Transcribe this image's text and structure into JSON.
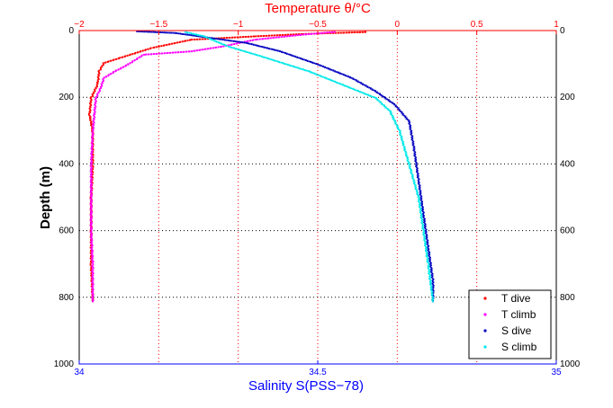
{
  "chart_data": {
    "type": "scatter",
    "title": "Temperature θ/°C",
    "xlabel": "Salinity S(PSS−78)",
    "ylabel": "Depth (m)",
    "x_bottom": {
      "label": "Salinity S(PSS−78)",
      "range": [
        34,
        35
      ],
      "ticks": [
        "34",
        "34.5",
        "35"
      ],
      "color": "#0000ff"
    },
    "x_top": {
      "label": "Temperature θ/°C",
      "range": [
        -2,
        1
      ],
      "ticks": [
        "−2",
        "−1.5",
        "−1",
        "−0.5",
        "0",
        "0.5",
        "1"
      ],
      "color": "#ff0000"
    },
    "y": {
      "label": "Depth (m)",
      "range": [
        0,
        1000
      ],
      "reversed": true,
      "ticks": [
        "0",
        "200",
        "400",
        "600",
        "800",
        "1000"
      ]
    },
    "grid": true,
    "legend_position": "bottom-right",
    "series": [
      {
        "name": "T dive",
        "axis": "top",
        "color": "#ff0000",
        "points": [
          [
            -0.2,
            2
          ],
          [
            -0.6,
            8
          ],
          [
            -0.9,
            15
          ],
          [
            -1.3,
            25
          ],
          [
            -1.55,
            50
          ],
          [
            -1.75,
            80
          ],
          [
            -1.85,
            95
          ],
          [
            -1.88,
            120
          ],
          [
            -1.89,
            160
          ],
          [
            -1.93,
            200
          ],
          [
            -1.94,
            250
          ],
          [
            -1.92,
            300
          ],
          [
            -1.92,
            400
          ],
          [
            -1.93,
            500
          ],
          [
            -1.93,
            600
          ],
          [
            -1.93,
            700
          ],
          [
            -1.92,
            810
          ]
        ]
      },
      {
        "name": "T climb",
        "axis": "top",
        "color": "#ff00ff",
        "points": [
          [
            -0.4,
            2
          ],
          [
            -0.6,
            10
          ],
          [
            -0.9,
            25
          ],
          [
            -1.1,
            45
          ],
          [
            -1.3,
            60
          ],
          [
            -1.6,
            70
          ],
          [
            -1.7,
            100
          ],
          [
            -1.78,
            120
          ],
          [
            -1.85,
            140
          ],
          [
            -1.87,
            170
          ],
          [
            -1.9,
            200
          ],
          [
            -1.92,
            300
          ],
          [
            -1.93,
            400
          ],
          [
            -1.93,
            500
          ],
          [
            -1.93,
            600
          ],
          [
            -1.92,
            700
          ],
          [
            -1.92,
            810
          ]
        ]
      },
      {
        "name": "S dive",
        "axis": "bottom",
        "color": "#0000c0",
        "points": [
          [
            34.12,
            0
          ],
          [
            34.2,
            5
          ],
          [
            34.35,
            35
          ],
          [
            34.42,
            60
          ],
          [
            34.5,
            100
          ],
          [
            34.57,
            140
          ],
          [
            34.62,
            180
          ],
          [
            34.66,
            220
          ],
          [
            34.69,
            270
          ],
          [
            34.7,
            350
          ],
          [
            34.71,
            450
          ],
          [
            34.72,
            550
          ],
          [
            34.73,
            650
          ],
          [
            34.74,
            750
          ],
          [
            34.74,
            810
          ]
        ]
      },
      {
        "name": "S climb",
        "axis": "bottom",
        "color": "#00e8e8",
        "points": [
          [
            34.22,
            2
          ],
          [
            34.26,
            15
          ],
          [
            34.31,
            45
          ],
          [
            34.38,
            75
          ],
          [
            34.48,
            120
          ],
          [
            34.55,
            160
          ],
          [
            34.62,
            200
          ],
          [
            34.65,
            240
          ],
          [
            34.67,
            300
          ],
          [
            34.69,
            400
          ],
          [
            34.71,
            500
          ],
          [
            34.72,
            600
          ],
          [
            34.73,
            700
          ],
          [
            34.74,
            810
          ]
        ]
      }
    ]
  }
}
